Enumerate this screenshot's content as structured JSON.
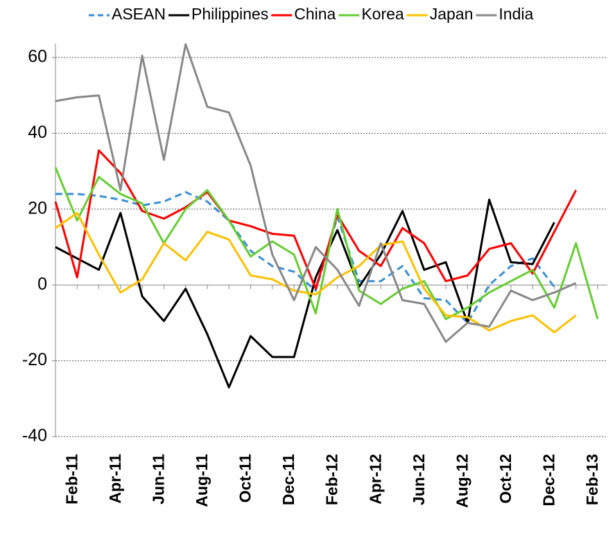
{
  "chart_data": {
    "type": "line",
    "categories": [
      "Jan-11",
      "Feb-11",
      "Mar-11",
      "Apr-11",
      "May-11",
      "Jun-11",
      "Jul-11",
      "Aug-11",
      "Sep-11",
      "Oct-11",
      "Nov-11",
      "Dec-11",
      "Jan-12",
      "Feb-12",
      "Mar-12",
      "Apr-12",
      "May-12",
      "Jun-12",
      "Jul-12",
      "Aug-12",
      "Sep-12",
      "Oct-12",
      "Nov-12",
      "Dec-12",
      "Jan-13",
      "Feb-13"
    ],
    "category_labels": [
      null,
      "Feb-11",
      null,
      "Apr-11",
      null,
      "Jun-11",
      null,
      "Aug-11",
      null,
      "Oct-11",
      null,
      "Dec-11",
      null,
      "Feb-12",
      null,
      "Apr-12",
      null,
      "Jun-12",
      null,
      "Aug-12",
      null,
      "Oct-12",
      null,
      "Dec-12",
      null,
      "Feb-13"
    ],
    "series": [
      {
        "name": "ASEAN",
        "color": "#3a8fd6",
        "dashed": true,
        "values": [
          24,
          24,
          23.5,
          22.5,
          21,
          22,
          24.5,
          22,
          17,
          9,
          5,
          3.5,
          -1.5,
          18,
          1,
          1,
          5,
          -3.5,
          -4,
          -10,
          0,
          5,
          7,
          -0.5,
          null,
          null
        ]
      },
      {
        "name": "Philippines",
        "color": "#000000",
        "values": [
          10,
          7,
          4,
          19,
          -3,
          -9.5,
          -1,
          -13,
          -27,
          -13.5,
          -19,
          -19,
          2,
          14.5,
          -0.5,
          8,
          19.5,
          4,
          6,
          -10,
          22.5,
          6,
          5.5,
          16.5,
          null,
          null
        ]
      },
      {
        "name": "China",
        "color": "#ff0000",
        "values": [
          22,
          2,
          35.5,
          29.5,
          19.5,
          17.5,
          20.5,
          24.5,
          17,
          15.5,
          13.5,
          13,
          -1,
          18.5,
          9,
          5,
          15,
          11,
          1,
          2.5,
          9.5,
          11,
          3,
          14,
          25,
          null
        ]
      },
      {
        "name": "Korea",
        "color": "#66cc33",
        "values": [
          31,
          17,
          28.5,
          24,
          21.5,
          11,
          20,
          25,
          17,
          7.5,
          11.5,
          8,
          -7.5,
          20,
          -1.5,
          -5,
          -1,
          1,
          -9,
          -6,
          -2,
          1,
          4,
          -6,
          11,
          -9
        ]
      },
      {
        "name": "Japan",
        "color": "#ffc000",
        "values": [
          15,
          19,
          8,
          -2,
          1.5,
          11,
          6.5,
          14,
          12,
          2.5,
          1.5,
          -1.5,
          -2.5,
          2,
          5,
          10.5,
          11.5,
          -1,
          -8,
          -8.5,
          -12,
          -9.5,
          -8,
          -12.5,
          -8,
          null
        ]
      },
      {
        "name": "India",
        "color": "#888888",
        "values": [
          48.5,
          49.5,
          50,
          25,
          60.5,
          33,
          63.5,
          47,
          45.5,
          31.5,
          8,
          -4,
          10,
          4,
          -5.5,
          11,
          -4,
          -5,
          -15,
          -10,
          -11,
          -1.5,
          -4,
          -2,
          0.5,
          null
        ]
      }
    ],
    "ylim": [
      -40,
      60
    ],
    "yticks": [
      -40,
      -20,
      0,
      20,
      40,
      60
    ],
    "grid": true,
    "legend": "top"
  }
}
